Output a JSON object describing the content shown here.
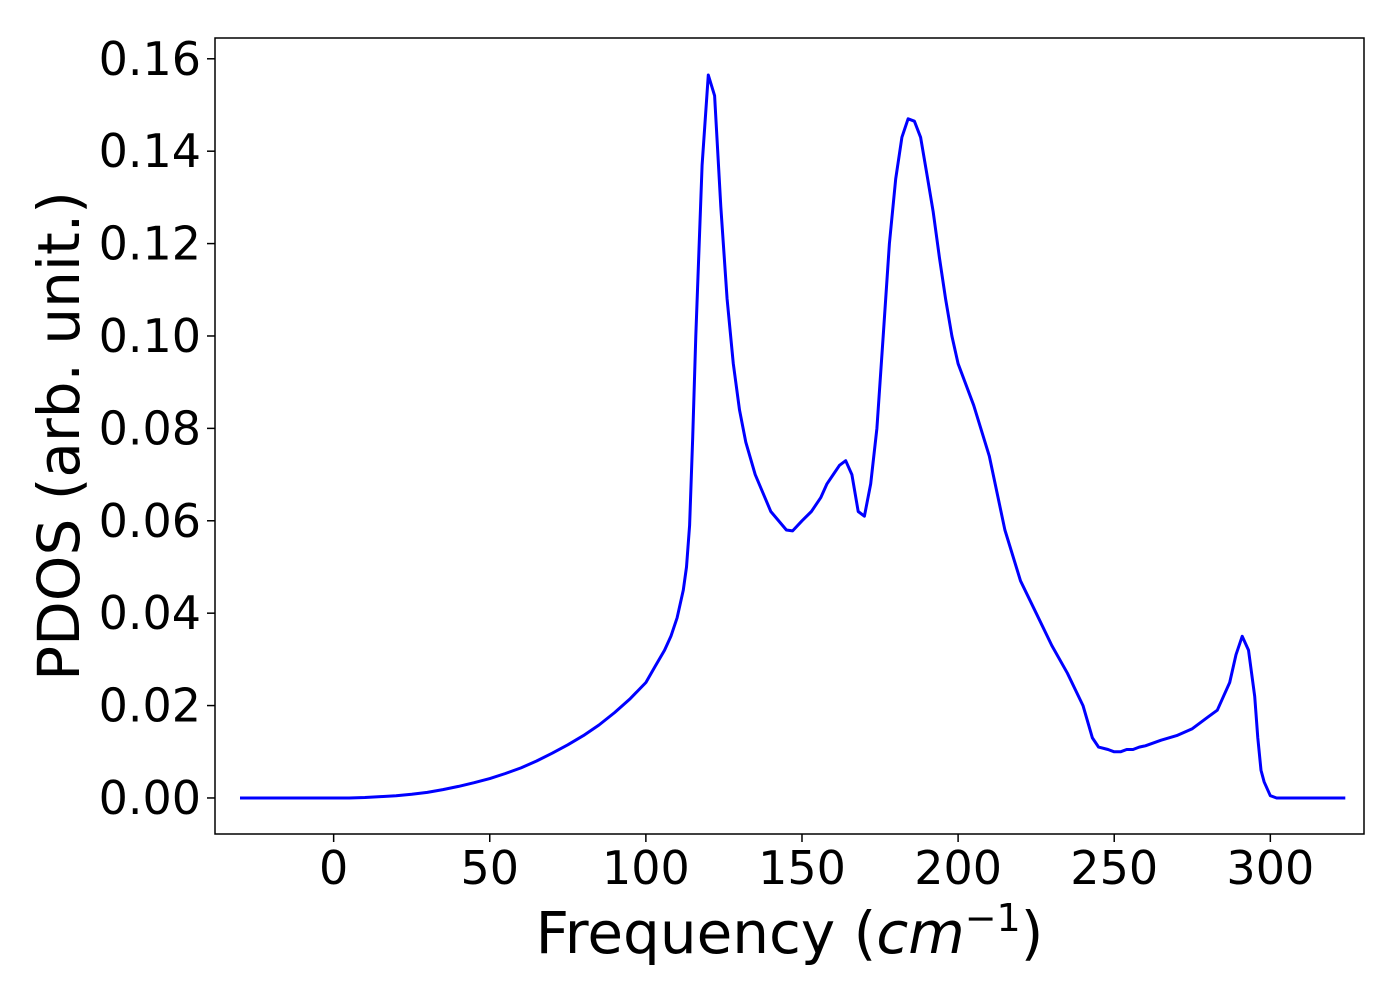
{
  "chart_data": {
    "type": "line",
    "title": "",
    "xlabel_text": "Frequency (",
    "xlabel_math": "cm",
    "xlabel_exp": "−1",
    "xlabel_close": ")",
    "ylabel": "PDOS (arb. unit.)",
    "xlim": [
      -38,
      330
    ],
    "ylim": [
      -0.0078,
      0.1645
    ],
    "xticks": [
      0,
      50,
      100,
      150,
      200,
      250,
      300
    ],
    "xtick_labels": [
      "0",
      "50",
      "100",
      "150",
      "200",
      "250",
      "300"
    ],
    "yticks": [
      0.0,
      0.02,
      0.04,
      0.06,
      0.08,
      0.1,
      0.12,
      0.14,
      0.16
    ],
    "ytick_labels": [
      "0.00",
      "0.02",
      "0.04",
      "0.06",
      "0.08",
      "0.10",
      "0.12",
      "0.14",
      "0.16"
    ],
    "grid": false,
    "series": [
      {
        "color": "#0000ff",
        "x": [
          -30,
          -20,
          -10,
          0,
          5,
          10,
          15,
          20,
          25,
          30,
          35,
          40,
          45,
          50,
          55,
          60,
          65,
          70,
          75,
          80,
          85,
          90,
          95,
          100,
          103,
          106,
          108,
          110,
          112,
          113,
          114,
          115,
          116,
          118,
          120,
          122,
          124,
          126,
          128,
          130,
          132,
          135,
          140,
          145,
          147,
          150,
          153,
          156,
          158,
          160,
          162,
          164,
          166,
          168,
          170,
          172,
          174,
          176,
          178,
          180,
          182,
          184,
          186,
          188,
          190,
          192,
          194,
          196,
          198,
          200,
          205,
          210,
          215,
          220,
          225,
          230,
          235,
          240,
          243,
          245,
          248,
          250,
          252,
          254,
          256,
          258,
          260,
          265,
          270,
          275,
          280,
          283,
          285,
          287,
          289,
          291,
          293,
          295,
          296,
          297,
          298,
          300,
          302,
          305,
          310,
          320,
          324
        ],
        "y": [
          0.0,
          0.0,
          0.0,
          0.0,
          0.0,
          0.0001,
          0.0003,
          0.0005,
          0.0008,
          0.0012,
          0.0018,
          0.0025,
          0.0033,
          0.0042,
          0.0053,
          0.0065,
          0.008,
          0.0097,
          0.0115,
          0.0135,
          0.0158,
          0.0185,
          0.0215,
          0.025,
          0.0285,
          0.032,
          0.035,
          0.039,
          0.045,
          0.05,
          0.059,
          0.078,
          0.1,
          0.137,
          0.1565,
          0.152,
          0.128,
          0.108,
          0.094,
          0.084,
          0.077,
          0.07,
          0.062,
          0.058,
          0.0578,
          0.06,
          0.062,
          0.065,
          0.068,
          0.07,
          0.072,
          0.073,
          0.07,
          0.062,
          0.061,
          0.068,
          0.08,
          0.1,
          0.12,
          0.134,
          0.143,
          0.147,
          0.1465,
          0.143,
          0.135,
          0.127,
          0.117,
          0.108,
          0.1,
          0.094,
          0.085,
          0.074,
          0.058,
          0.047,
          0.04,
          0.033,
          0.027,
          0.02,
          0.013,
          0.011,
          0.0105,
          0.01,
          0.01,
          0.0105,
          0.0105,
          0.011,
          0.0113,
          0.0125,
          0.0135,
          0.015,
          0.0175,
          0.019,
          0.022,
          0.025,
          0.031,
          0.035,
          0.032,
          0.022,
          0.013,
          0.006,
          0.0035,
          0.0005,
          0.0,
          0.0,
          0.0,
          0.0,
          0.0
        ]
      }
    ]
  }
}
